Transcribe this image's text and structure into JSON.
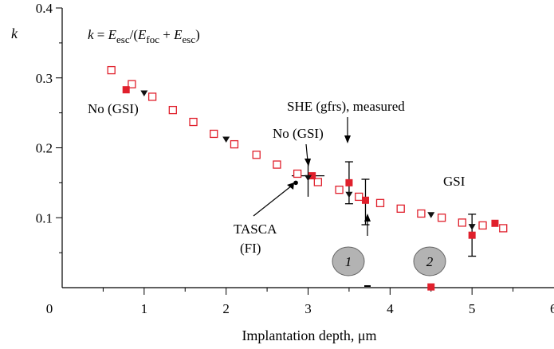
{
  "chart_data": {
    "type": "scatter",
    "xlabel": "Implantation depth, μm",
    "ylabel": "k",
    "xlim": [
      0,
      6
    ],
    "ylim": [
      0,
      0.4
    ],
    "x_ticks": [
      0,
      1,
      2,
      3,
      4,
      5
    ],
    "y_ticks": [
      0.1,
      0.2,
      0.3,
      0.4
    ],
    "x_minor_step": 0.5,
    "grid": false,
    "formula": {
      "k": "k",
      "eq": " = ",
      "E": "E",
      "esc": "esc",
      "foc": "foc",
      "slash": "/(",
      "plus": " + ",
      "close": ")"
    },
    "series": [
      {
        "marker": "open-square",
        "color": "#e0202c",
        "points": [
          [
            0.6,
            0.311
          ],
          [
            0.85,
            0.291
          ],
          [
            1.1,
            0.273
          ],
          [
            1.35,
            0.254
          ],
          [
            1.6,
            0.237
          ],
          [
            1.85,
            0.22
          ],
          [
            2.1,
            0.205
          ],
          [
            2.37,
            0.19
          ],
          [
            2.62,
            0.176
          ],
          [
            2.87,
            0.163
          ],
          [
            3.12,
            0.151
          ],
          [
            3.38,
            0.14
          ],
          [
            3.62,
            0.13
          ],
          [
            3.88,
            0.121
          ],
          [
            4.13,
            0.113
          ],
          [
            4.38,
            0.106
          ],
          [
            4.63,
            0.1
          ],
          [
            4.88,
            0.093
          ],
          [
            5.13,
            0.089
          ],
          [
            5.38,
            0.085
          ]
        ]
      },
      {
        "marker": "filled-square",
        "color": "#e0202c",
        "points": [
          [
            0.78,
            0.283
          ],
          [
            3.05,
            0.16
          ],
          [
            3.5,
            0.15
          ],
          [
            3.7,
            0.125
          ],
          [
            5.0,
            0.075
          ],
          [
            5.28,
            0.092
          ],
          [
            4.5,
            0.001
          ]
        ]
      },
      {
        "marker": "filled-triangle-down",
        "color": "#111111",
        "points": [
          [
            1.0,
            0.278
          ],
          [
            2.0,
            0.212
          ],
          [
            3.0,
            0.157
          ],
          [
            3.5,
            0.133
          ],
          [
            4.5,
            0.104
          ],
          [
            5.0,
            0.087
          ]
        ]
      }
    ],
    "error_bars": [
      {
        "x": 3.5,
        "y_low": 0.12,
        "y_high": 0.18
      },
      {
        "x": 3.7,
        "y_low": 0.09,
        "y_high": 0.155
      },
      {
        "x": 5.0,
        "y_low": 0.045,
        "y_high": 0.105
      }
    ],
    "cross_marker": {
      "x": 3.0,
      "y": 0.16,
      "dx": 0.2,
      "dy_low": 0.13,
      "dy_high": 0.18
    },
    "tasca_point": {
      "x": 2.85,
      "y": 0.15
    },
    "annotations": {
      "no_gsi_left": "No (GSI)",
      "no_gsi_mid": "No (GSI)",
      "she": "SHE (gfrs), measured",
      "gsi": "GSI",
      "tasca_1": "TASCA",
      "tasca_2": "(FI)",
      "bubble_1": "1",
      "bubble_2": "2",
      "x_edge_label": "6"
    }
  }
}
